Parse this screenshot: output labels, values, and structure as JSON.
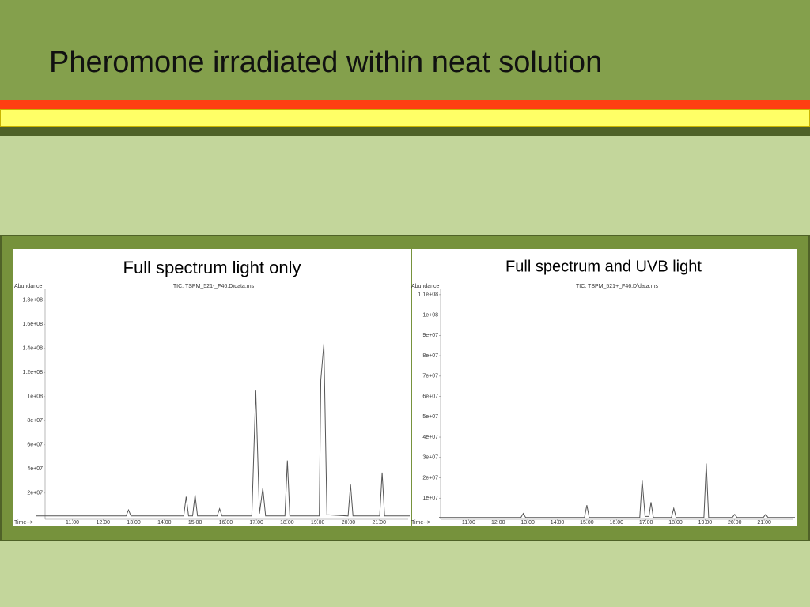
{
  "slide": {
    "title": "Pheromone irradiated within neat solution"
  },
  "chart_data": [
    {
      "type": "line",
      "title": "Full spectrum light only",
      "subtitle": "TIC: TSPM_521-_F46.D\\data.ms",
      "y_label": "Abundance",
      "x_label": "Time-->",
      "color": "#555555",
      "x": [
        9.8,
        12.75,
        12.83,
        12.91,
        14.63,
        14.71,
        14.79,
        14.92,
        15.0,
        15.08,
        15.72,
        15.8,
        15.88,
        16.85,
        16.98,
        17.1,
        17.21,
        17.3,
        17.93,
        18.01,
        18.09,
        19.05,
        19.1,
        19.2,
        19.3,
        19.99,
        20.07,
        20.15,
        21.02,
        21.1,
        21.18,
        22
      ],
      "values": [
        1000000,
        1000000,
        6000000,
        1000000,
        1000000,
        17000000,
        1000000,
        1000000,
        18500000,
        1000000,
        1000000,
        7000000,
        1000000,
        1000000,
        105000000,
        3000000,
        24000000,
        1000000,
        1000000,
        47000000,
        1000000,
        1000000,
        114000000,
        144000000,
        2000000,
        1000000,
        27000000,
        1000000,
        1000000,
        37000000,
        1000000,
        1000000
      ],
      "xlim": [
        9.8,
        22
      ],
      "ylim": [
        -7000000,
        193000000
      ],
      "xticks": [
        {
          "value": 11,
          "label": "11.00"
        },
        {
          "value": 12,
          "label": "12.00"
        },
        {
          "value": 13,
          "label": "13.00"
        },
        {
          "value": 14,
          "label": "14.00"
        },
        {
          "value": 15,
          "label": "15.00"
        },
        {
          "value": 16,
          "label": "16.00"
        },
        {
          "value": 17,
          "label": "17.00"
        },
        {
          "value": 18,
          "label": "18.00"
        },
        {
          "value": 19,
          "label": "19.00"
        },
        {
          "value": 20,
          "label": "20.00"
        },
        {
          "value": 21,
          "label": "21.00"
        }
      ],
      "yticks": [
        {
          "value": 20000000,
          "label": "2e+07"
        },
        {
          "value": 40000000,
          "label": "4e+07"
        },
        {
          "value": 60000000,
          "label": "6e+07"
        },
        {
          "value": 80000000,
          "label": "8e+07"
        },
        {
          "value": 100000000,
          "label": "1e+08"
        },
        {
          "value": 120000000,
          "label": "1.2e+08"
        },
        {
          "value": 140000000,
          "label": "1.4e+08"
        },
        {
          "value": 160000000,
          "label": "1.6e+08"
        },
        {
          "value": 180000000,
          "label": "1.8e+08"
        }
      ]
    },
    {
      "type": "line",
      "title": "Full spectrum and UVB light",
      "subtitle": "TIC: TSPM_521+_F46.D\\data.ms",
      "y_label": "Abundance",
      "x_label": "Time-->",
      "color": "#555555",
      "x": [
        10,
        12.77,
        12.85,
        12.93,
        14.92,
        15.0,
        15.08,
        16.79,
        16.87,
        16.97,
        17.1,
        17.17,
        17.25,
        17.86,
        17.94,
        18.02,
        18.96,
        19.04,
        19.12,
        19.92,
        20.0,
        20.08,
        20.97,
        21.05,
        21.13,
        22.04
      ],
      "values": [
        500000,
        500000,
        2500000,
        500000,
        500000,
        6500000,
        500000,
        500000,
        19000000,
        1000000,
        1000000,
        8000000,
        500000,
        500000,
        5000000,
        500000,
        500000,
        27000000,
        500000,
        500000,
        2000000,
        500000,
        500000,
        2000000,
        500000,
        500000
      ],
      "xlim": [
        10,
        22.04
      ],
      "ylim": [
        -3500000,
        115000000
      ],
      "xticks": [
        {
          "value": 11,
          "label": "11.00"
        },
        {
          "value": 12,
          "label": "12.00"
        },
        {
          "value": 13,
          "label": "13.00"
        },
        {
          "value": 14,
          "label": "14.00"
        },
        {
          "value": 15,
          "label": "15.00"
        },
        {
          "value": 16,
          "label": "16.00"
        },
        {
          "value": 17,
          "label": "17.00"
        },
        {
          "value": 18,
          "label": "18.00"
        },
        {
          "value": 19,
          "label": "19.00"
        },
        {
          "value": 20,
          "label": "20.00"
        },
        {
          "value": 21,
          "label": "21.00"
        }
      ],
      "yticks": [
        {
          "value": 10000000,
          "label": "1e+07"
        },
        {
          "value": 20000000,
          "label": "2e+07"
        },
        {
          "value": 30000000,
          "label": "3e+07"
        },
        {
          "value": 40000000,
          "label": "4e+07"
        },
        {
          "value": 50000000,
          "label": "5e+07"
        },
        {
          "value": 60000000,
          "label": "6e+07"
        },
        {
          "value": 70000000,
          "label": "7e+07"
        },
        {
          "value": 80000000,
          "label": "8e+07"
        },
        {
          "value": 90000000,
          "label": "9e+07"
        },
        {
          "value": 100000000,
          "label": "1e+08"
        },
        {
          "value": 110000000,
          "label": "1.1e+08"
        }
      ]
    }
  ]
}
